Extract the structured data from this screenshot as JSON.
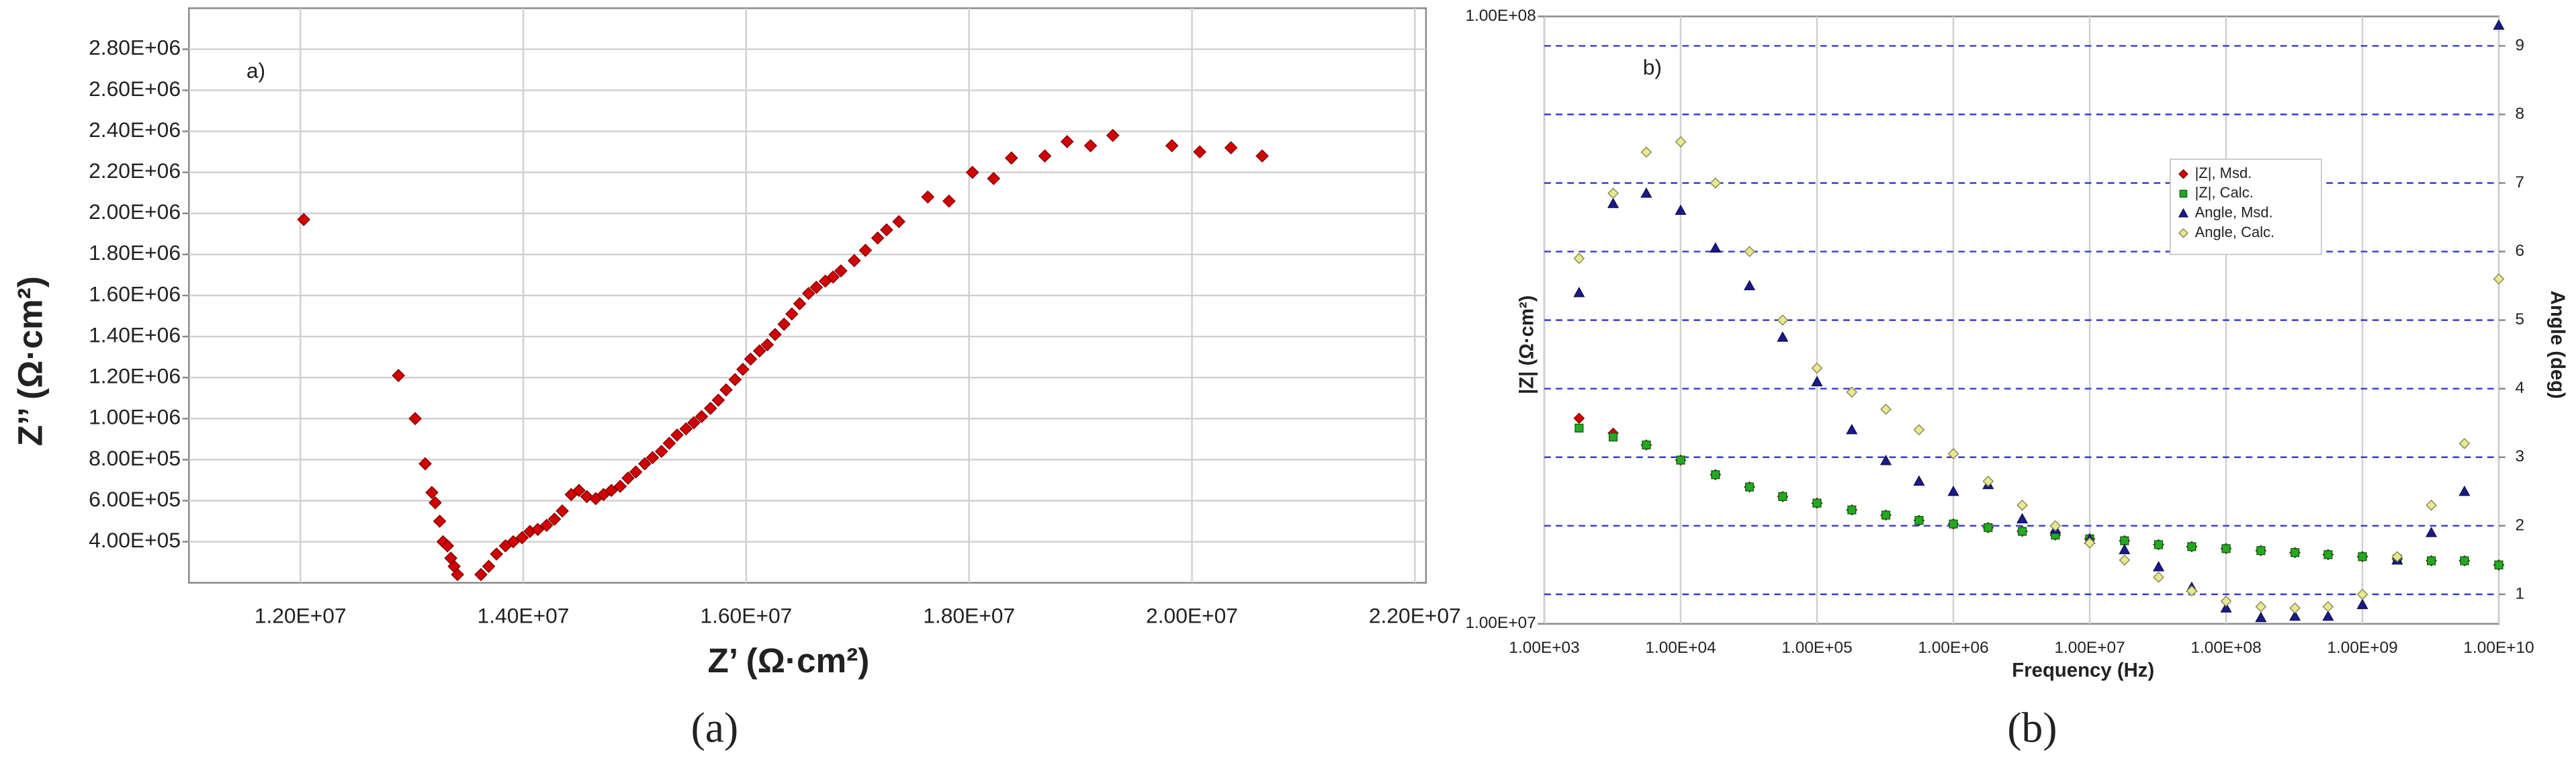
{
  "chart_data": [
    {
      "type": "scatter",
      "annotation": "a)",
      "caption": "(a)",
      "x_label": "Z’ (Ω·cm²)",
      "y_label": "Z’’ (Ω·cm²)",
      "xlim": [
        11000000.0,
        22100000.0
      ],
      "ylim": [
        200000.0,
        3000000.0
      ],
      "xticks": [
        {
          "value": 12000000.0,
          "label": "1.20E+07"
        },
        {
          "value": 14000000.0,
          "label": "1.40E+07"
        },
        {
          "value": 16000000.0,
          "label": "1.60E+07"
        },
        {
          "value": 18000000.0,
          "label": "1.80E+07"
        },
        {
          "value": 20000000.0,
          "label": "2.00E+07"
        },
        {
          "value": 22000000.0,
          "label": "2.20E+07"
        }
      ],
      "yticks": [
        {
          "value": 400000.0,
          "label": "4.00E+05"
        },
        {
          "value": 600000.0,
          "label": "6.00E+05"
        },
        {
          "value": 800000.0,
          "label": "8.00E+05"
        },
        {
          "value": 1000000.0,
          "label": "1.00E+06"
        },
        {
          "value": 1200000.0,
          "label": "1.20E+06"
        },
        {
          "value": 1400000.0,
          "label": "1.40E+06"
        },
        {
          "value": 1600000.0,
          "label": "1.60E+06"
        },
        {
          "value": 1800000.0,
          "label": "1.80E+06"
        },
        {
          "value": 2000000.0,
          "label": "2.00E+06"
        },
        {
          "value": 2200000.0,
          "label": "2.20E+06"
        },
        {
          "value": 2400000.0,
          "label": "2.40E+06"
        },
        {
          "value": 2600000.0,
          "label": "2.60E+06"
        },
        {
          "value": 2800000.0,
          "label": "2.80E+06"
        }
      ],
      "grid": true,
      "series": [
        {
          "color": "#d40000",
          "marker": "diamond",
          "x": [
            12030000.0,
            12880000.0,
            13030000.0,
            13120000.0,
            13180000.0,
            13210000.0,
            13250000.0,
            13280000.0,
            13320000.0,
            13350000.0,
            13380000.0,
            13410000.0,
            13620000.0,
            13690000.0,
            13760000.0,
            13840000.0,
            13910000.0,
            13990000.0,
            14060000.0,
            14130000.0,
            14210000.0,
            14280000.0,
            14350000.0,
            14430000.0,
            14500000.0,
            14570000.0,
            14650000.0,
            14720000.0,
            14790000.0,
            14870000.0,
            14940000.0,
            15010000.0,
            15090000.0,
            15160000.0,
            15240000.0,
            15310000.0,
            15380000.0,
            15460000.0,
            15530000.0,
            15600000.0,
            15680000.0,
            15750000.0,
            15820000.0,
            15900000.0,
            15970000.0,
            16040000.0,
            16120000.0,
            16190000.0,
            16260000.0,
            16340000.0,
            16410000.0,
            16480000.0,
            16560000.0,
            16630000.0,
            16710000.0,
            16780000.0,
            16850000.0,
            16970000.0,
            17070000.0,
            17180000.0,
            17260000.0,
            17370000.0,
            17630000.0,
            17820000.0,
            18030000.0,
            18220000.0,
            18380000.0,
            18680000.0,
            18880000.0,
            19090000.0,
            19290000.0,
            19820000.0,
            20070000.0,
            20350000.0,
            20630000.0
          ],
          "values": [
            1970000.0,
            1210000.0,
            1000000.0,
            780000.0,
            640000.0,
            590000.0,
            500000.0,
            400000.0,
            380000.0,
            320000.0,
            280000.0,
            240000.0,
            240000.0,
            280000.0,
            340000.0,
            380000.0,
            400000.0,
            420000.0,
            450000.0,
            460000.0,
            480000.0,
            510000.0,
            550000.0,
            630000.0,
            650000.0,
            620000.0,
            610000.0,
            630000.0,
            650000.0,
            670000.0,
            710000.0,
            740000.0,
            780000.0,
            810000.0,
            840000.0,
            880000.0,
            920000.0,
            950000.0,
            980000.0,
            1010000.0,
            1050000.0,
            1090000.0,
            1140000.0,
            1190000.0,
            1240000.0,
            1290000.0,
            1330000.0,
            1360000.0,
            1410000.0,
            1460000.0,
            1510000.0,
            1560000.0,
            1610000.0,
            1640000.0,
            1670000.0,
            1690000.0,
            1720000.0,
            1770000.0,
            1820000.0,
            1880000.0,
            1920000.0,
            1960000.0,
            2080000.0,
            2060000.0,
            2200000.0,
            2170000.0,
            2270000.0,
            2280000.0,
            2350000.0,
            2330000.0,
            2380000.0,
            2330000.0,
            2300000.0,
            2320000.0,
            2280000.0
          ]
        }
      ]
    },
    {
      "type": "scatter",
      "annotation": "b)",
      "caption": "(b)",
      "x_label": "Frequency (Hz)",
      "y_label": "|Z| (Ω·cm²)",
      "y2_label": "Angle (deg)",
      "xscale": "log",
      "yscale": "log",
      "xlim": [
        1000.0,
        10000000000.0
      ],
      "ylim": [
        10000000.0,
        100000000.0
      ],
      "y2lim": [
        0.57,
        9.43
      ],
      "xticks": [
        {
          "value": 1000.0,
          "label": "1.00E+03"
        },
        {
          "value": 10000.0,
          "label": "1.00E+04"
        },
        {
          "value": 100000.0,
          "label": "1.00E+05"
        },
        {
          "value": 1000000.0,
          "label": "1.00E+06"
        },
        {
          "value": 10000000.0,
          "label": "1.00E+07"
        },
        {
          "value": 100000000.0,
          "label": "1.00E+08"
        },
        {
          "value": 1000000000.0,
          "label": "1.00E+09"
        },
        {
          "value": 10000000000.0,
          "label": "1.00E+10"
        }
      ],
      "yticks": [
        {
          "value": 10000000.0,
          "label": "1.00E+07"
        },
        {
          "value": 100000000.0,
          "label": "1.00E+08"
        }
      ],
      "y2ticks": [
        1,
        2,
        3,
        4,
        5,
        6,
        7,
        8,
        9
      ],
      "grid": true,
      "grid_y_axis": "y2",
      "grid_y_color": "#3a3ad0",
      "grid_y_style": "dashed",
      "legend": "upper right",
      "x": [
        1800,
        3200,
        5600,
        10000.0,
        18000.0,
        32000.0,
        56000.0,
        100000.0,
        180000.0,
        320000.0,
        560000.0,
        1000000.0,
        1800000.0,
        3200000.0,
        5600000.0,
        10000000.0,
        18000000.0,
        32000000.0,
        56000000.0,
        100000000.0,
        180000000.0,
        320000000.0,
        560000000.0,
        1000000000.0,
        1800000000.0,
        3200000000.0,
        5600000000.0,
        10000000000.0
      ],
      "series": [
        {
          "name": "|Z|,  Msd.",
          "color": "#d40000",
          "marker": "diamond",
          "values": [
            21800000.0,
            20600000.0,
            19700000.0,
            18600000.0,
            17600000.0,
            16800000.0,
            16200000.0,
            15800000.0,
            15400000.0,
            15100000.0,
            14800000.0,
            14600000.0,
            14400000.0,
            14200000.0,
            14000000.0,
            13800000.0,
            13700000.0,
            13500000.0,
            13400000.0,
            13300000.0,
            13200000.0,
            13100000.0,
            13000000.0,
            12900000.0,
            12800000.0,
            12700000.0,
            12700000.0,
            12500000.0
          ]
        },
        {
          "name": "|Z|,  Calc.",
          "color": "#22aa22",
          "marker": "square",
          "values": [
            21000000.0,
            20300000.0,
            19700000.0,
            18600000.0,
            17600000.0,
            16800000.0,
            16200000.0,
            15800000.0,
            15400000.0,
            15100000.0,
            14800000.0,
            14600000.0,
            14400000.0,
            14200000.0,
            14000000.0,
            13800000.0,
            13700000.0,
            13500000.0,
            13400000.0,
            13300000.0,
            13200000.0,
            13100000.0,
            13000000.0,
            12900000.0,
            12800000.0,
            12700000.0,
            12700000.0,
            12500000.0
          ]
        },
        {
          "name": "Angle,  Msd.",
          "color": "#1a1a8c",
          "marker": "triangle",
          "axis": "y2",
          "values": [
            5.4,
            6.7,
            6.85,
            6.6,
            6.05,
            5.5,
            4.75,
            4.1,
            3.4,
            2.95,
            2.65,
            2.5,
            2.6,
            2.1,
            1.95,
            1.8,
            1.65,
            1.4,
            1.1,
            0.8,
            0.66,
            0.68,
            0.68,
            0.85,
            1.5,
            1.9,
            2.5,
            9.3
          ]
        },
        {
          "name": "Angle,  Calc.",
          "color": "#e8e890",
          "marker": "diamond",
          "axis": "y2",
          "values": [
            5.9,
            6.85,
            7.45,
            7.6,
            7.0,
            6.0,
            5.0,
            4.3,
            3.95,
            3.7,
            3.4,
            3.05,
            2.65,
            2.3,
            2.0,
            1.75,
            1.5,
            1.25,
            1.05,
            0.9,
            0.82,
            0.8,
            0.82,
            1.0,
            1.55,
            2.3,
            3.2,
            5.6
          ]
        }
      ]
    }
  ]
}
